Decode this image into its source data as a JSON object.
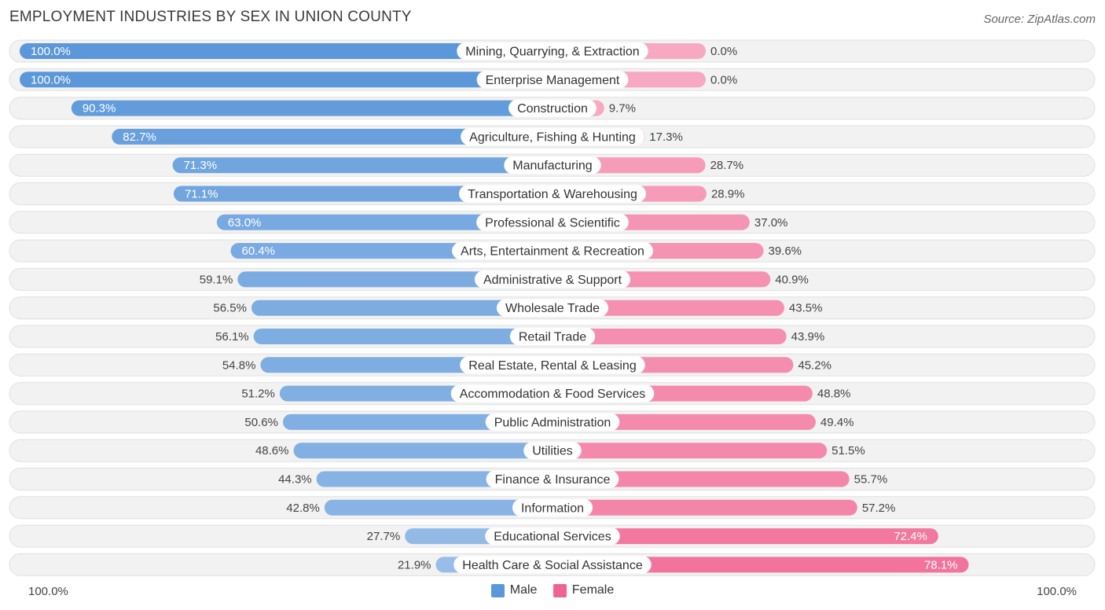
{
  "header": {
    "title": "EMPLOYMENT INDUSTRIES BY SEX IN UNION COUNTY",
    "source": "Source: ZipAtlas.com"
  },
  "colors": {
    "male_strong": "#5b97d9",
    "male_light": "#a9c8ec",
    "female_strong": "#f0628f",
    "female_light": "#f8b3c9",
    "row_bg": "#f2f2f2",
    "row_border": "#e0e0e0"
  },
  "chart_data": {
    "type": "bar",
    "orientation": "horizontal-diverging",
    "title": "EMPLOYMENT INDUSTRIES BY SEX IN UNION COUNTY",
    "categories": [
      "Mining, Quarrying, & Extraction",
      "Enterprise Management",
      "Construction",
      "Agriculture, Fishing & Hunting",
      "Manufacturing",
      "Transportation & Warehousing",
      "Professional & Scientific",
      "Arts, Entertainment & Recreation",
      "Administrative & Support",
      "Wholesale Trade",
      "Retail Trade",
      "Real Estate, Rental & Leasing",
      "Accommodation & Food Services",
      "Public Administration",
      "Utilities",
      "Finance & Insurance",
      "Information",
      "Educational Services",
      "Health Care & Social Assistance"
    ],
    "series": [
      {
        "name": "Male",
        "values": [
          100.0,
          100.0,
          90.3,
          82.7,
          71.3,
          71.1,
          63.0,
          60.4,
          59.1,
          56.5,
          56.1,
          54.8,
          51.2,
          50.6,
          48.6,
          44.3,
          42.8,
          27.7,
          21.9
        ],
        "labels": [
          "100.0%",
          "100.0%",
          "90.3%",
          "82.7%",
          "71.3%",
          "71.1%",
          "63.0%",
          "60.4%",
          "59.1%",
          "56.5%",
          "56.1%",
          "54.8%",
          "51.2%",
          "50.6%",
          "48.6%",
          "44.3%",
          "42.8%",
          "27.7%",
          "21.9%"
        ]
      },
      {
        "name": "Female",
        "values": [
          0.0,
          0.0,
          9.7,
          17.3,
          28.7,
          28.9,
          37.0,
          39.6,
          40.9,
          43.5,
          43.9,
          45.2,
          48.8,
          49.4,
          51.5,
          55.7,
          57.2,
          72.4,
          78.1
        ],
        "labels": [
          "0.0%",
          "0.0%",
          "9.7%",
          "17.3%",
          "28.7%",
          "28.9%",
          "37.0%",
          "39.6%",
          "40.9%",
          "43.5%",
          "43.9%",
          "45.2%",
          "48.8%",
          "49.4%",
          "51.5%",
          "55.7%",
          "57.2%",
          "72.4%",
          "78.1%"
        ]
      }
    ],
    "xlim": [
      -100,
      100
    ],
    "axis_labels": {
      "left": "100.0%",
      "right": "100.0%"
    },
    "legend": [
      "Male",
      "Female"
    ],
    "legend_position": "bottom-center"
  }
}
